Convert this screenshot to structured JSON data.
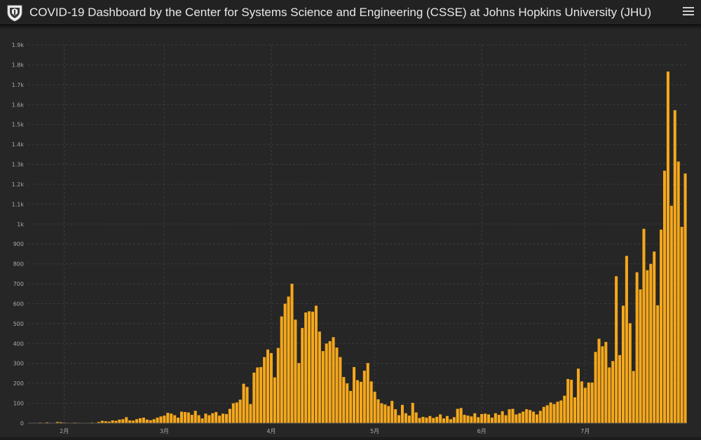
{
  "header": {
    "title": "COVID-19 Dashboard by the Center for Systems Science and Engineering (CSSE) at Johns Hopkins University (JHU)",
    "logo_icon": "jhu-shield-icon",
    "menu_icon": "hamburger-menu-icon"
  },
  "colors": {
    "bar": "#f5a81c",
    "background": "#262626",
    "header": "#222222",
    "grid": "#3c3c3c",
    "axis_text": "#a9a9a9"
  },
  "chart_data": {
    "type": "bar",
    "title": "",
    "xlabel": "",
    "ylabel": "",
    "ylim": [
      0,
      1900
    ],
    "yticks": [
      0,
      100,
      200,
      300,
      400,
      500,
      600,
      700,
      800,
      900,
      1000,
      1100,
      1200,
      1300,
      1400,
      1500,
      1600,
      1700,
      1800,
      1900
    ],
    "ytick_labels": [
      "0",
      "100",
      "200",
      "300",
      "400",
      "500",
      "600",
      "700",
      "800",
      "900",
      "1k",
      "1.1k",
      "1.2k",
      "1.3k",
      "1.4k",
      "1.5k",
      "1.6k",
      "1.7k",
      "1.8k",
      "1.9k"
    ],
    "x_start_date": "2020-01-22",
    "xtick_labels": [
      {
        "label": "2月",
        "date": "2020-02-01"
      },
      {
        "label": "3月",
        "date": "2020-03-01"
      },
      {
        "label": "4月",
        "date": "2020-04-01"
      },
      {
        "label": "5月",
        "date": "2020-05-01"
      },
      {
        "label": "6月",
        "date": "2020-06-01"
      },
      {
        "label": "7月",
        "date": "2020-07-01"
      }
    ],
    "grid": true,
    "legend": "none",
    "values": [
      1,
      2,
      1,
      3,
      1,
      4,
      2,
      1,
      6,
      5,
      3,
      2,
      1,
      3,
      2,
      1,
      2,
      1,
      3,
      2,
      6,
      12,
      10,
      8,
      14,
      12,
      18,
      20,
      30,
      14,
      13,
      20,
      25,
      28,
      18,
      15,
      20,
      28,
      34,
      38,
      52,
      48,
      40,
      28,
      58,
      56,
      54,
      42,
      62,
      40,
      24,
      48,
      40,
      50,
      56,
      38,
      48,
      46,
      72,
      100,
      104,
      118,
      198,
      182,
      96,
      254,
      280,
      282,
      332,
      370,
      352,
      230,
      378,
      536,
      600,
      636,
      700,
      520,
      302,
      478,
      556,
      562,
      560,
      590,
      460,
      362,
      400,
      412,
      432,
      380,
      332,
      232,
      200,
      162,
      282,
      216,
      208,
      264,
      302,
      210,
      158,
      120,
      100,
      94,
      86,
      112,
      70,
      40,
      92,
      50,
      38,
      102,
      54,
      26,
      32,
      28,
      36,
      26,
      32,
      44,
      24,
      36,
      20,
      30,
      72,
      76,
      42,
      38,
      34,
      50,
      30,
      46,
      48,
      44,
      28,
      50,
      42,
      60,
      40,
      70,
      72,
      44,
      50,
      58,
      70,
      66,
      58,
      44,
      62,
      82,
      90,
      104,
      96,
      108,
      114,
      138,
      222,
      218,
      130,
      274,
      210,
      178,
      204,
      204,
      358,
      424,
      386,
      408,
      280,
      312,
      738,
      342,
      590,
      840,
      502,
      262,
      758,
      672,
      976,
      768,
      800,
      862,
      592,
      972,
      1268,
      1766,
      1092,
      1572,
      1314,
      986,
      1254
    ]
  }
}
